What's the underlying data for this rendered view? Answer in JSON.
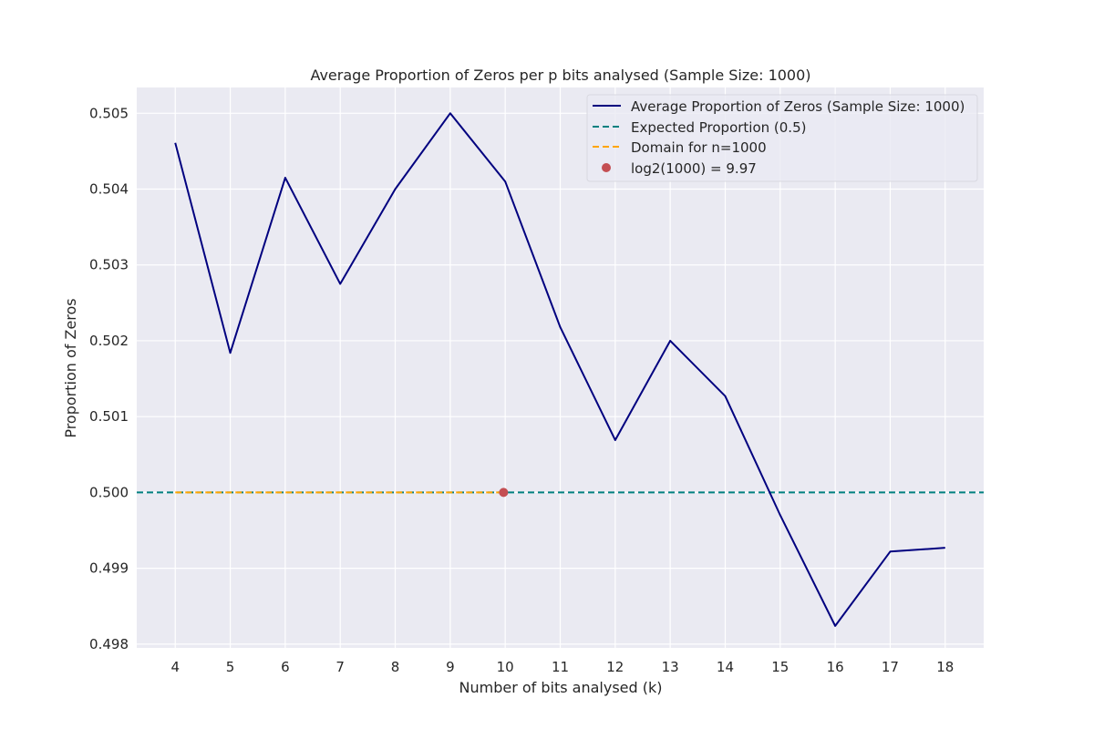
{
  "chart_data": {
    "type": "line",
    "title": "Average Proportion of Zeros per p bits analysed (Sample Size: 1000)",
    "xlabel": "Number of bits analysed (k)",
    "ylabel": "Proportion of Zeros",
    "xlim": [
      3.3,
      18.7
    ],
    "ylim": [
      0.49795,
      0.50534
    ],
    "x_ticks": [
      4,
      5,
      6,
      7,
      8,
      9,
      10,
      11,
      12,
      13,
      14,
      15,
      16,
      17,
      18
    ],
    "x_tick_labels": [
      "4",
      "5",
      "6",
      "7",
      "8",
      "9",
      "10",
      "11",
      "12",
      "13",
      "14",
      "15",
      "16",
      "17",
      "18"
    ],
    "y_ticks": [
      0.498,
      0.499,
      0.5,
      0.501,
      0.502,
      0.503,
      0.504,
      0.505
    ],
    "y_tick_labels": [
      "0.498",
      "0.499",
      "0.500",
      "0.501",
      "0.502",
      "0.503",
      "0.504",
      "0.505"
    ],
    "grid": true,
    "legend_position": "top-right",
    "series": [
      {
        "name": "Average Proportion of Zeros (Sample Size: 1000)",
        "kind": "line",
        "color": "#00007f",
        "x": [
          4,
          5,
          6,
          7,
          8,
          9,
          10,
          11,
          12,
          13,
          14,
          15,
          16,
          17,
          18
        ],
        "y": [
          0.50461,
          0.50184,
          0.50415,
          0.50275,
          0.504,
          0.505,
          0.5041,
          0.50218,
          0.50069,
          0.502,
          0.50127,
          0.4997,
          0.49824,
          0.49922,
          0.49927
        ]
      },
      {
        "name": "Expected Proportion (0.5)",
        "kind": "hline",
        "color": "#008080",
        "y": 0.5
      },
      {
        "name": "Domain for n=1000",
        "kind": "segment",
        "color": "#ffa500",
        "x": [
          4,
          9.97
        ],
        "y": [
          0.5,
          0.5
        ]
      },
      {
        "name": "log2(1000) = 9.97",
        "kind": "point",
        "color": "#c44e52",
        "x": [
          9.97
        ],
        "y": [
          0.5
        ]
      }
    ]
  }
}
